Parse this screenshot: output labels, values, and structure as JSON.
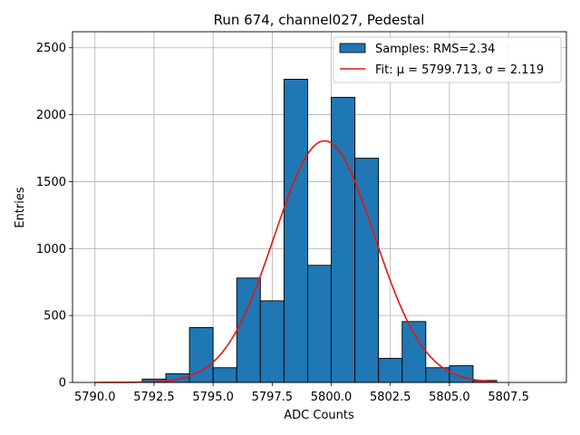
{
  "chart_data": {
    "type": "bar",
    "title": "Run 674, channel027, Pedestal",
    "xlabel": "ADC Counts",
    "ylabel": "Entries",
    "xlim": [
      5789.05,
      5809.95
    ],
    "ylim": [
      0,
      2620
    ],
    "grid": true,
    "legend_position": "top-right",
    "bar_color": "#1f77b4",
    "fit_color": "#e8140f",
    "xticks": [
      5790.0,
      5792.5,
      5795.0,
      5797.5,
      5800.0,
      5802.5,
      5805.0,
      5807.5
    ],
    "xtick_labels": [
      "5790.0",
      "5792.5",
      "5795.0",
      "5797.5",
      "5800.0",
      "5802.5",
      "5805.0",
      "5807.5"
    ],
    "yticks": [
      0,
      500,
      1000,
      1500,
      2000,
      2500
    ],
    "ytick_labels": [
      "0",
      "500",
      "1000",
      "1500",
      "2000",
      "2500"
    ],
    "histogram": {
      "name": "Samples: RMS=2.34",
      "bins": [
        {
          "x0": 5792.0,
          "x1": 5793.0,
          "value": 25
        },
        {
          "x0": 5793.0,
          "x1": 5794.0,
          "value": 65
        },
        {
          "x0": 5794.0,
          "x1": 5795.0,
          "value": 410
        },
        {
          "x0": 5795.0,
          "x1": 5796.0,
          "value": 110
        },
        {
          "x0": 5796.0,
          "x1": 5797.0,
          "value": 780
        },
        {
          "x0": 5797.0,
          "x1": 5798.0,
          "value": 610
        },
        {
          "x0": 5798.0,
          "x1": 5799.0,
          "value": 2265
        },
        {
          "x0": 5799.0,
          "x1": 5800.0,
          "value": 875
        },
        {
          "x0": 5800.0,
          "x1": 5801.0,
          "value": 2130
        },
        {
          "x0": 5801.0,
          "x1": 5802.0,
          "value": 1675
        },
        {
          "x0": 5802.0,
          "x1": 5803.0,
          "value": 180
        },
        {
          "x0": 5803.0,
          "x1": 5804.0,
          "value": 455
        },
        {
          "x0": 5804.0,
          "x1": 5805.0,
          "value": 110
        },
        {
          "x0": 5805.0,
          "x1": 5806.0,
          "value": 125
        },
        {
          "x0": 5806.0,
          "x1": 5807.0,
          "value": 15
        }
      ]
    },
    "fit": {
      "name": "Fit: μ = 5799.713, σ = 2.119",
      "mu": 5799.713,
      "sigma": 2.119,
      "amplitude": 1805,
      "x_range": [
        5790.0,
        5807.0
      ]
    }
  }
}
